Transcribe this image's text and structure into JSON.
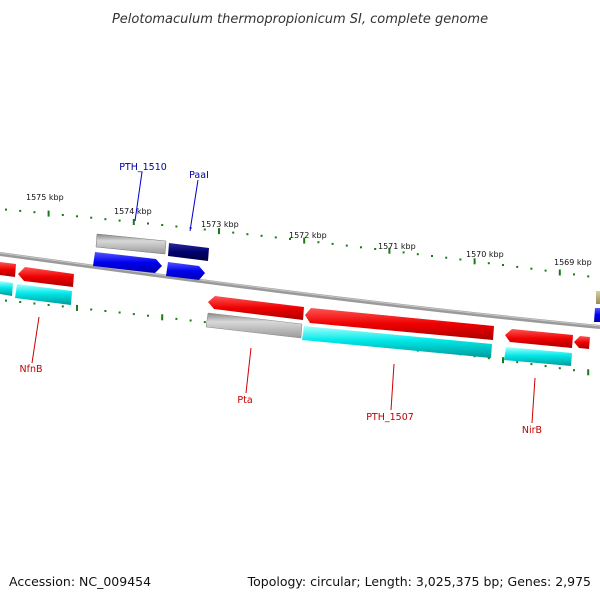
{
  "title": "Pelotomaculum thermopropionicum SI, complete genome",
  "accession": "Accession: NC_009454",
  "summary": "Topology: circular; Length: 3,025,375 bp; Genes: 2,975",
  "scale_labels": [
    "1575 kbp",
    "1574 kbp",
    "1573 kbp",
    "1572 kbp",
    "1571 kbp",
    "1570 kbp",
    "1569 kbp"
  ],
  "top_genes": [
    {
      "name": "PTH_1510",
      "color": "#0000cc"
    },
    {
      "name": "PaaI",
      "color": "#0000cc"
    }
  ],
  "bottom_genes": [
    {
      "name": "NfnB",
      "color": "#cc0000"
    },
    {
      "name": "Pta",
      "color": "#cc0000"
    },
    {
      "name": "PTH_1507",
      "color": "#cc0000"
    },
    {
      "name": "NirB",
      "color": "#cc0000"
    }
  ],
  "colors": {
    "forward_cds": "#ee1111",
    "reverse_cds": "#1111ee",
    "rna": "#00e5e5",
    "other": "#b0b0b0",
    "dark": "#000070",
    "olive": "#b5a878",
    "tick": "#1a7a1a",
    "backbone": "#888888"
  }
}
